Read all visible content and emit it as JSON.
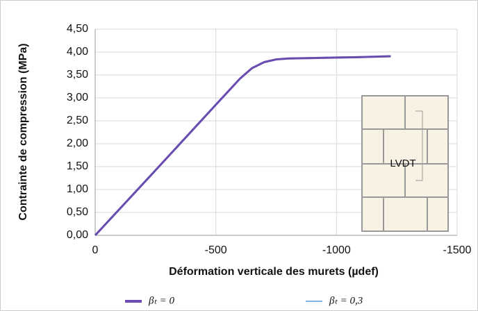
{
  "chart_data": {
    "type": "line",
    "xlabel": "Déformation verticale des murets (µdef)",
    "ylabel": "Contrainte de compression (MPa)",
    "annotation": "LVDT",
    "x": [
      0,
      -250,
      -500,
      -600,
      -650,
      -700,
      -750,
      -800,
      -900,
      -1000,
      -1100,
      -1225
    ],
    "series": [
      {
        "name": "βₜ = 0,3",
        "color": "#7fb2e0",
        "values": [
          0,
          1.42,
          2.85,
          3.42,
          3.65,
          3.78,
          3.84,
          3.86,
          3.87,
          3.88,
          3.89,
          3.91
        ]
      },
      {
        "name": "βₜ = 0",
        "color": "#6a4bb0",
        "values": [
          0,
          1.42,
          2.85,
          3.42,
          3.65,
          3.78,
          3.84,
          3.86,
          3.87,
          3.88,
          3.89,
          3.91
        ]
      }
    ],
    "xlim": [
      0,
      -1500
    ],
    "xticks": [
      0,
      -500,
      -1000,
      -1500
    ],
    "ylim": [
      0,
      4.5
    ],
    "yticks": [
      {
        "value": 0,
        "label": "0,00"
      },
      {
        "value": 0.5,
        "label": "0,50"
      },
      {
        "value": 1,
        "label": "1,00"
      },
      {
        "value": 1.5,
        "label": "1,50"
      },
      {
        "value": 2,
        "label": "2,00"
      },
      {
        "value": 2.5,
        "label": "2,50"
      },
      {
        "value": 3,
        "label": "3,00"
      },
      {
        "value": 3.5,
        "label": "3,50"
      },
      {
        "value": 4,
        "label": "4,00"
      },
      {
        "value": 4.5,
        "label": "4,50"
      }
    ],
    "grid": true
  }
}
